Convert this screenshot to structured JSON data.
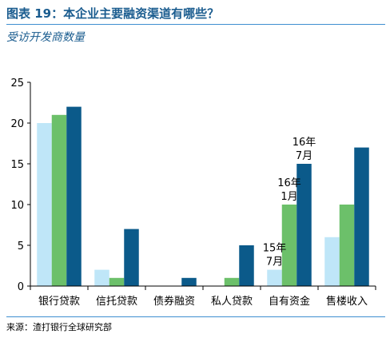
{
  "header": {
    "title": "图表 19：本企业主要融资渠道有哪些？",
    "subtitle": "受访开发商数量"
  },
  "footer": {
    "source": "来源：渣打银行全球研究部"
  },
  "colors": {
    "series": [
      "#bfe6f8",
      "#6cc06a",
      "#0b5a8a"
    ],
    "title": "#1a5c8f",
    "rule": "#3f8fd0"
  },
  "chart_data": {
    "type": "bar",
    "categories": [
      "银行贷款",
      "信托贷款",
      "债券融资",
      "私人贷款",
      "自有资金",
      "售楼收入"
    ],
    "series": [
      {
        "values": [
          20,
          2,
          0,
          0,
          2,
          6
        ]
      },
      {
        "values": [
          21,
          1,
          0,
          1,
          10,
          10
        ]
      },
      {
        "values": [
          22,
          7,
          1,
          5,
          15,
          17
        ]
      }
    ],
    "ylim": [
      0,
      25
    ],
    "yticks": [
      0,
      5,
      10,
      15,
      20,
      25
    ],
    "grid": false,
    "annotations": [
      {
        "series": 0,
        "category": "自有资金",
        "lines": [
          "15年",
          "7月"
        ]
      },
      {
        "series": 1,
        "category": "自有资金",
        "lines": [
          "16年",
          "1月"
        ]
      },
      {
        "series": 2,
        "category": "自有资金",
        "lines": [
          "16年",
          "7月"
        ]
      }
    ]
  }
}
